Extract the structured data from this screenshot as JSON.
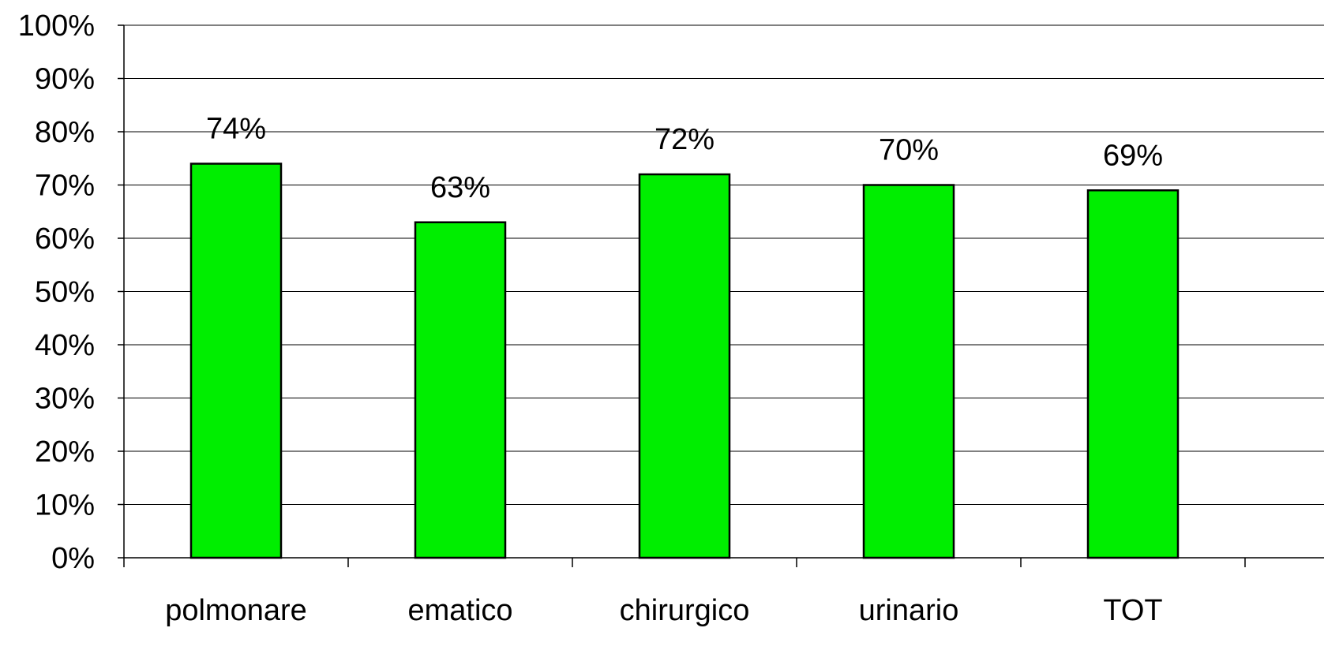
{
  "chart_data": {
    "type": "bar",
    "categories": [
      "polmonare",
      "ematico",
      "chirurgico",
      "urinario",
      "TOT"
    ],
    "values": [
      74,
      63,
      72,
      70,
      69
    ],
    "data_labels": [
      "74%",
      "63%",
      "72%",
      "70%",
      "69%"
    ],
    "yticks": [
      "0%",
      "10%",
      "20%",
      "30%",
      "40%",
      "50%",
      "60%",
      "70%",
      "80%",
      "90%",
      "100%"
    ],
    "ylim": [
      0,
      100
    ],
    "grid": true,
    "legend": "none",
    "bar_color": "#00ee00",
    "title": "",
    "xlabel": "",
    "ylabel": ""
  }
}
